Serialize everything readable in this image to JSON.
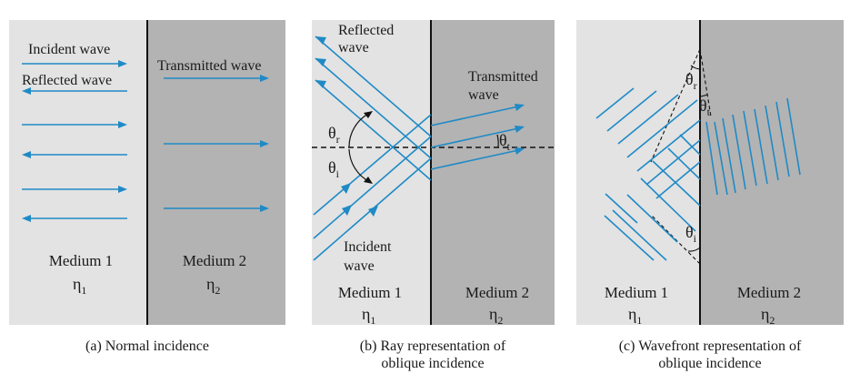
{
  "colors": {
    "medium1": "#e3e3e3",
    "medium2": "#b3b3b3",
    "ray": "#1f8ac6",
    "interface": "#111111"
  },
  "panels": {
    "a": {
      "incident": "Incident wave",
      "reflected": "Reflected wave",
      "transmitted": "Transmitted wave",
      "medium1": "Medium 1",
      "medium2": "Medium 2",
      "eta": "η",
      "eta1_sub": "1",
      "eta2_sub": "2",
      "caption1": "(a)  Normal incidence"
    },
    "b": {
      "reflected1": "Reflected",
      "reflected2": "wave",
      "transmitted1": "Transmitted",
      "transmitted2": "wave",
      "incident1": "Incident",
      "incident2": "wave",
      "theta": "θ",
      "theta_r_sub": "r",
      "theta_i_sub": "i",
      "theta_t_sub": "t",
      "medium1": "Medium 1",
      "medium2": "Medium 2",
      "eta": "η",
      "eta1_sub": "1",
      "eta2_sub": "2",
      "caption1": "(b)  Ray representation of",
      "caption2": "oblique incidence"
    },
    "c": {
      "theta": "θ",
      "theta_r_sub": "r",
      "theta_t_sub": "t",
      "theta_i_sub": "i",
      "medium1": "Medium 1",
      "medium2": "Medium 2",
      "eta": "η",
      "eta1_sub": "1",
      "eta2_sub": "2",
      "caption1": "(c)  Wavefront representation of",
      "caption2": "oblique incidence"
    }
  }
}
